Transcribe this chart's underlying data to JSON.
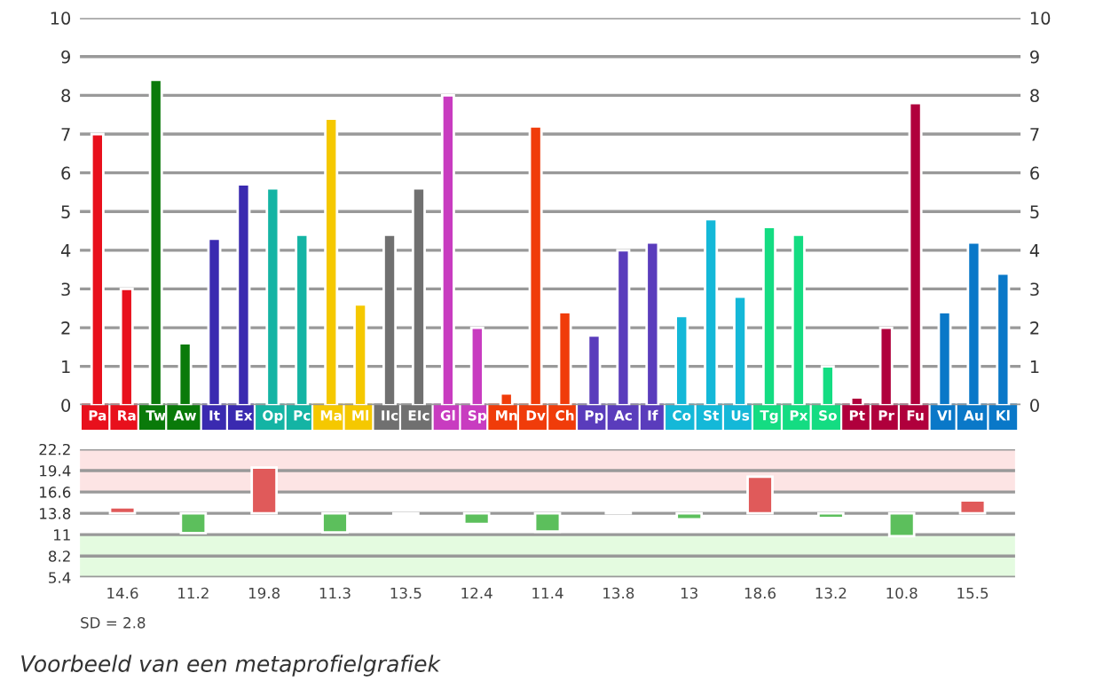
{
  "chart_data": [
    {
      "type": "bar",
      "categories": [
        "Pa",
        "Ra",
        "Tw",
        "Aw",
        "It",
        "Ex",
        "Op",
        "Pc",
        "Ma",
        "Ml",
        "IIc",
        "EIc",
        "Gl",
        "Sp",
        "Mn",
        "Dv",
        "Ch",
        "Pp",
        "Ac",
        "If",
        "Co",
        "St",
        "Us",
        "Tg",
        "Px",
        "So",
        "Pt",
        "Pr",
        "Fu",
        "Vl",
        "Au",
        "Kl"
      ],
      "values": [
        7,
        3,
        8.4,
        1.6,
        4.3,
        5.7,
        5.6,
        4.4,
        7.4,
        2.6,
        4.4,
        5.6,
        8,
        2,
        0.3,
        7.2,
        2.4,
        1.8,
        4,
        4.2,
        2.3,
        4.8,
        2.8,
        4.6,
        4.4,
        1,
        0.2,
        2,
        7.8,
        2.4,
        4.2,
        3.4
      ],
      "colors": [
        "#e8101c",
        "#e8101c",
        "#0a7a0a",
        "#0a7a0a",
        "#3a2ab0",
        "#3a2ab0",
        "#14b4a4",
        "#14b4a4",
        "#f5c800",
        "#f5c800",
        "#707070",
        "#707070",
        "#c83cc0",
        "#c83cc0",
        "#f03c0a",
        "#f03c0a",
        "#f03c0a",
        "#5a3cbc",
        "#5a3cbc",
        "#5a3cbc",
        "#14b8d8",
        "#14b8d8",
        "#14b8d8",
        "#14dc82",
        "#14dc82",
        "#14dc82",
        "#b0003c",
        "#b0003c",
        "#b0003c",
        "#0a78c8",
        "#0a78c8",
        "#0a78c8"
      ],
      "ylim": [
        0,
        10
      ],
      "yticks": [
        0,
        1,
        2,
        3,
        4,
        5,
        6,
        7,
        8,
        9,
        10
      ],
      "y2lim": [
        0,
        10
      ],
      "y2ticks": [
        0,
        1,
        2,
        3,
        4,
        5,
        6,
        7,
        8,
        9,
        10
      ],
      "grid": "y"
    },
    {
      "type": "bar",
      "categories": [
        null,
        null,
        null,
        null,
        null,
        null,
        null,
        null,
        null,
        null,
        null,
        null,
        null
      ],
      "base": [
        13.8,
        13.8,
        13.8,
        13.8,
        13.8,
        13.8,
        13.8,
        13.8,
        13.8,
        13.8,
        13.8,
        13.8,
        13.8
      ],
      "values": [
        0.8,
        -2.6,
        6,
        -2.5,
        -0.3,
        -1.4,
        -2.4,
        0,
        -0.8,
        4.8,
        -0.6,
        -3,
        1.7
      ],
      "value_labels": [
        "14.6",
        "11.2",
        "19.8",
        "11.3",
        "13.5",
        "12.4",
        "11.4",
        "13.8",
        "13",
        "18.6",
        "13.2",
        "10.8",
        "15.5"
      ],
      "colors": [
        "#e05a5a",
        "#5cbf5c",
        "#e05a5a",
        "#5cbf5c",
        "#5cbf5c",
        "#5cbf5c",
        "#5cbf5c",
        "#888888",
        "#5cbf5c",
        "#e05a5a",
        "#5cbf5c",
        "#5cbf5c",
        "#e05a5a"
      ],
      "ylim": [
        5.4,
        22.2
      ],
      "yticks": [
        5.4,
        8.2,
        11,
        13.8,
        16.6,
        19.4,
        22.2
      ],
      "bands": [
        {
          "axis": "y",
          "from": 16.6,
          "to": 22.2,
          "color": "#fde4e4"
        },
        {
          "axis": "y",
          "from": 5.4,
          "to": 11,
          "color": "#e4fbe0"
        }
      ],
      "grid": "y",
      "annotations": [
        "SD = 2.8",
        "Voorbeeld van een metaprofielgrafiek"
      ]
    }
  ]
}
